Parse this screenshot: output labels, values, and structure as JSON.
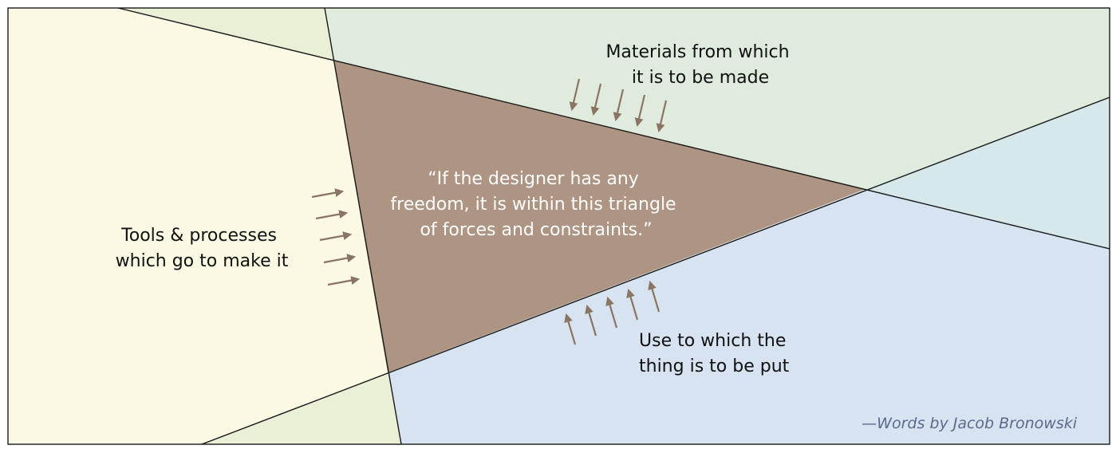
{
  "diagram": {
    "quote_lines": [
      "“If the designer has any",
      "freedom, it is within this triangle",
      "of forces and constraints.”"
    ],
    "materials_lines": [
      "Materials from which",
      "it is to be made"
    ],
    "tools_lines": [
      "Tools & processes",
      "which go to make it"
    ],
    "use_lines": [
      "Use to which the",
      "thing is to be put"
    ],
    "credit": "—Words by Jacob Bronowski"
  },
  "colors": {
    "tools_region": "#fbf9e3",
    "materials_region": "#deebdd",
    "use_region": "#d8e3f1",
    "overlap_top_left": "#eaf0d6",
    "overlap_bottom_left": "#eaf0d6",
    "overlap_right": "#d6e8ea",
    "triangle": "#ae9583",
    "arrows": "#8a7563",
    "lines": "#1a1a1a",
    "credit_text": "#5b6a8c"
  }
}
